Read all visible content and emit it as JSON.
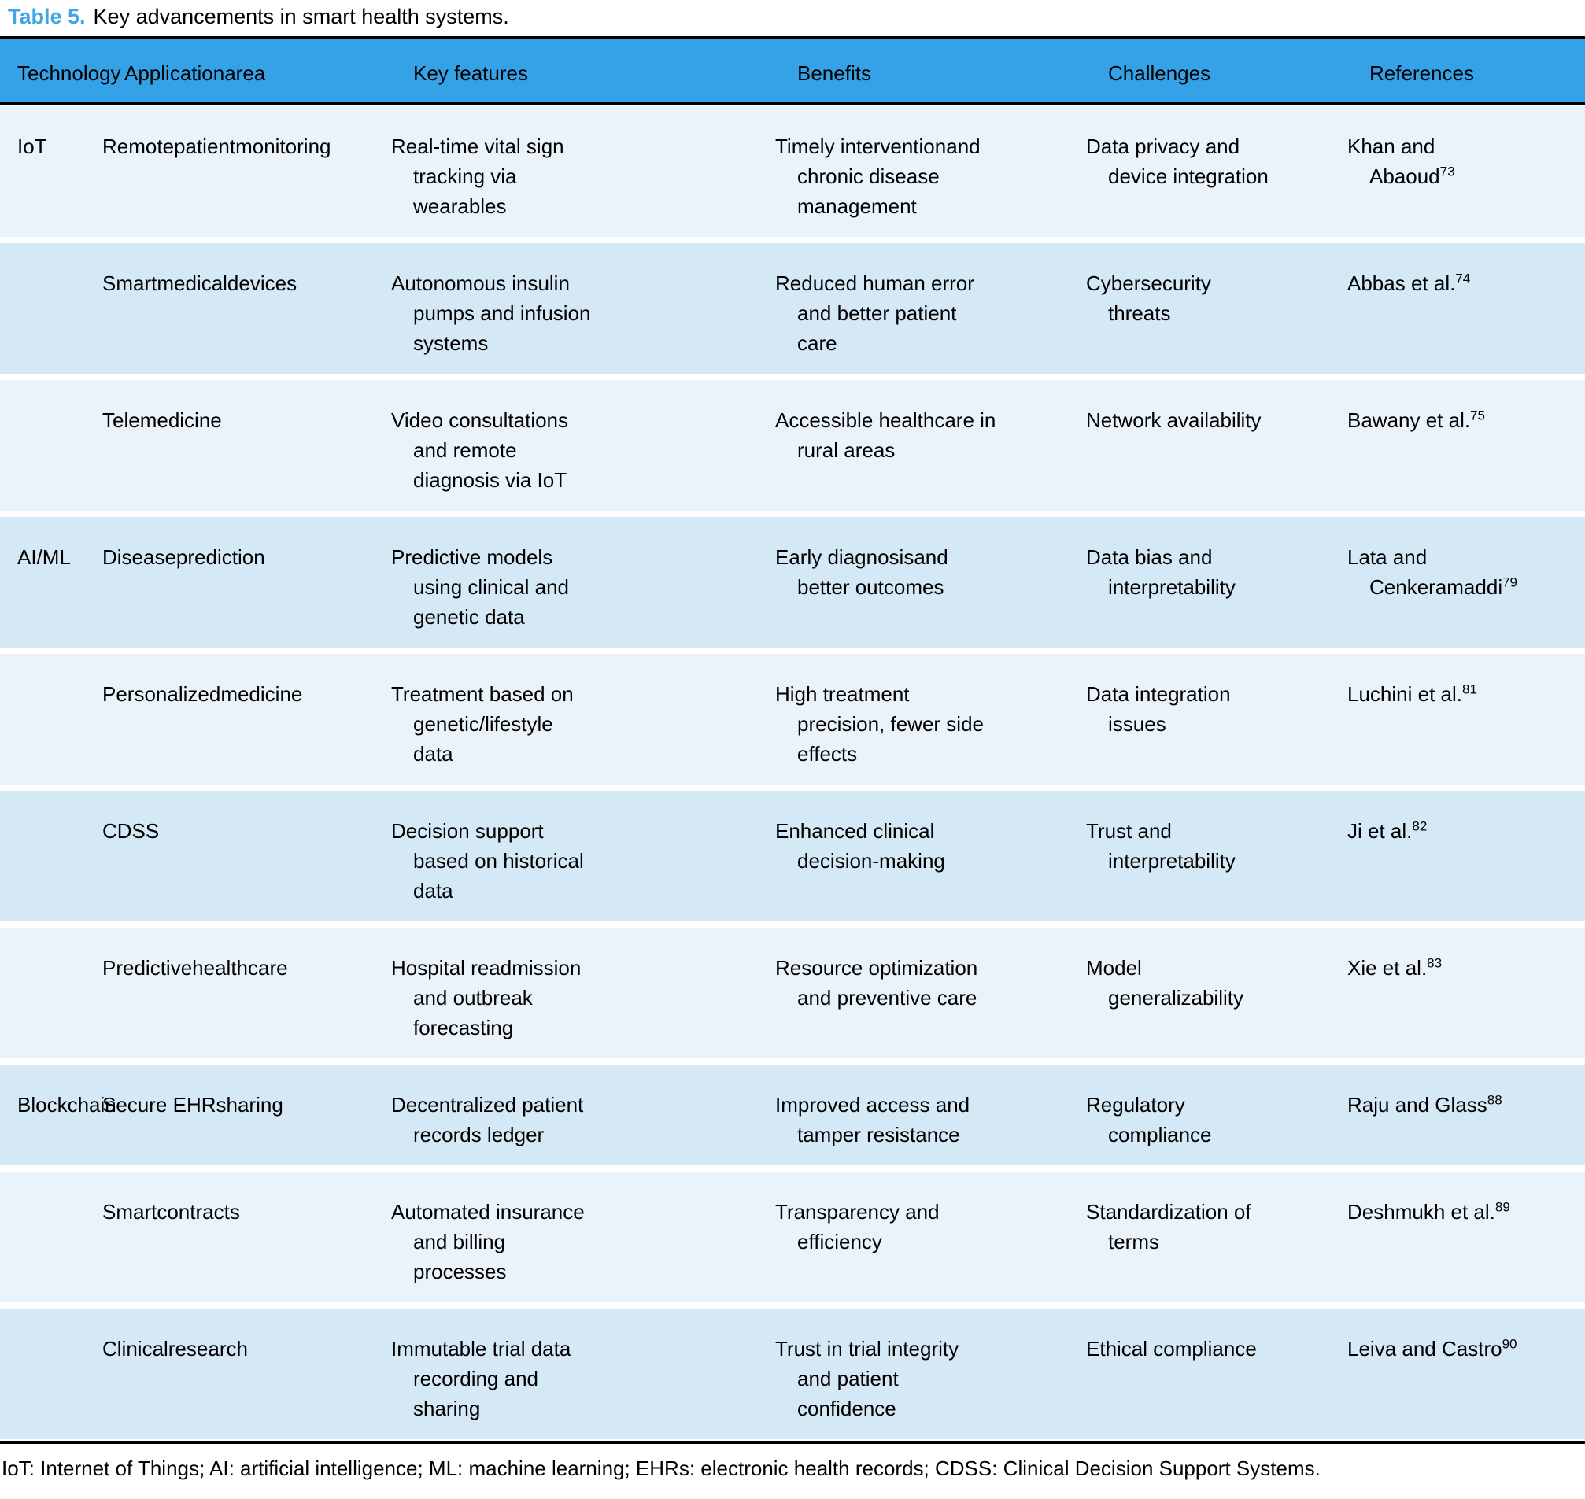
{
  "title": {
    "label": "Table 5.",
    "text": "Key advancements in smart health systems."
  },
  "columns": [
    "Technology",
    "Applicationarea",
    "Key features",
    "Benefits",
    "Challenges",
    "References"
  ],
  "rows": [
    {
      "technology": "IoT",
      "application": "Remotepatientmonitoring",
      "key_features": "Real-time vital sign\ntracking via\nwearables",
      "benefits": "Timely interventionand\nchronic disease\nmanagement",
      "challenges": "Data privacy and\ndevice integration",
      "reference": {
        "text": "Khan and\nAbaoud",
        "sup": "73"
      }
    },
    {
      "technology": "",
      "application": "Smartmedicaldevices",
      "key_features": "Autonomous insulin\npumps and infusion\nsystems",
      "benefits": "Reduced human error\nand better patient\ncare",
      "challenges": "Cybersecurity\nthreats",
      "reference": {
        "text": "Abbas et al.",
        "sup": "74"
      }
    },
    {
      "technology": "",
      "application": "Telemedicine",
      "key_features": "Video consultations\nand remote\ndiagnosis via IoT",
      "benefits": "Accessible healthcare in\nrural areas",
      "challenges": "Network availability",
      "reference": {
        "text": "Bawany et al.",
        "sup": "75"
      }
    },
    {
      "technology": "AI/ML",
      "application": "Diseaseprediction",
      "key_features": "Predictive models\nusing clinical and\ngenetic data",
      "benefits": "Early diagnosisand\nbetter outcomes",
      "challenges": "Data bias and\ninterpretability",
      "reference": {
        "text": "Lata and\nCenkeramaddi",
        "sup": "79"
      }
    },
    {
      "technology": "",
      "application": "Personalizedmedicine",
      "key_features": "Treatment based on\ngenetic/lifestyle\ndata",
      "benefits": "High treatment\nprecision, fewer side\neffects",
      "challenges": "Data integration\nissues",
      "reference": {
        "text": "Luchini et al.",
        "sup": "81"
      }
    },
    {
      "technology": "",
      "application": "CDSS",
      "key_features": "Decision support\nbased on historical\ndata",
      "benefits": "Enhanced clinical\ndecision-making",
      "challenges": "Trust and\ninterpretability",
      "reference": {
        "text": "Ji et al.",
        "sup": "82"
      }
    },
    {
      "technology": "",
      "application": "Predictivehealthcare",
      "key_features": "Hospital readmission\nand outbreak\nforecasting",
      "benefits": "Resource optimization\nand preventive care",
      "challenges": "Model\ngeneralizability",
      "reference": {
        "text": "Xie et al.",
        "sup": "83"
      }
    },
    {
      "technology": "Blockchain",
      "application": "Secure EHRsharing",
      "key_features": "Decentralized patient\nrecords ledger",
      "benefits": "Improved access and\ntamper resistance",
      "challenges": "Regulatory\ncompliance",
      "reference": {
        "text": "Raju and Glass",
        "sup": "88"
      }
    },
    {
      "technology": "",
      "application": "Smartcontracts",
      "key_features": "Automated insurance\nand billing\nprocesses",
      "benefits": "Transparency and\nefficiency",
      "challenges": "Standardization of\nterms",
      "reference": {
        "text": "Deshmukh et al.",
        "sup": "89"
      }
    },
    {
      "technology": "",
      "application": "Clinicalresearch",
      "key_features": "Immutable trial data\nrecording and\nsharing",
      "benefits": "Trust in trial integrity\nand patient\nconfidence",
      "challenges": "Ethical compliance",
      "reference": {
        "text": "Leiva and Castro",
        "sup": "90"
      }
    }
  ],
  "footnote": "IoT: Internet of Things; AI: artificial intelligence; ML: machine learning; EHRs: electronic health records; CDSS: Clinical Decision Support Systems.",
  "colors": {
    "header_bg": "#35A2E8",
    "row_light": "#EAF3FA",
    "row_dark": "#D5E8F6",
    "title_accent": "#3FA7E6",
    "rule": "#000000"
  }
}
